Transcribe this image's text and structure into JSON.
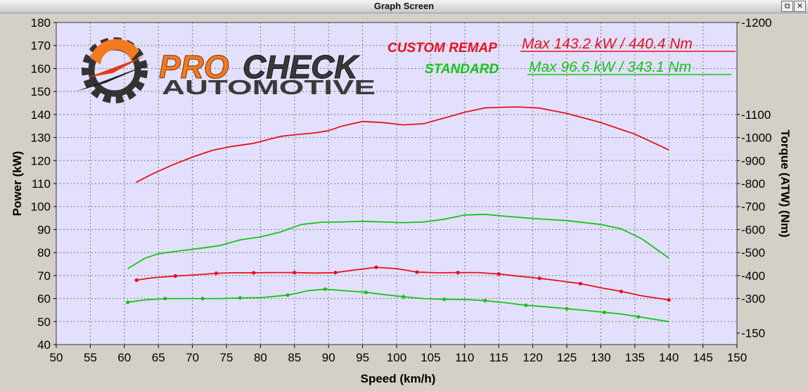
{
  "window": {
    "title": "Graph Screen",
    "restore_icon": "restore-icon",
    "close_icon": "close-icon",
    "restore_glyph": "⧉",
    "close_glyph": "✕"
  },
  "logo": {
    "word_pro": "PRO",
    "word_check": "CHECK",
    "word_automotive": "AUTOMOTIVE",
    "colors": {
      "orange": "#f47a20",
      "dark": "#2b2b2b"
    }
  },
  "legend": {
    "custom": {
      "name": "CUSTOM REMAP",
      "max": "Max 143.2 kW  / 440.4 Nm",
      "color": "#e8101e"
    },
    "standard": {
      "name": "STANDARD",
      "max": "Max 96.6 kW  / 343.1 Nm",
      "color": "#16c316"
    }
  },
  "chart_data": {
    "type": "line",
    "xlabel": "Speed (km/h)",
    "ylabel": "Power (kW)",
    "y2label": "Torque (ATW) (Nm)",
    "xlim": [
      50,
      150
    ],
    "ylim": [
      40,
      180
    ],
    "y2lim": [
      150,
      1200
    ],
    "x_ticks": [
      50,
      55,
      60,
      65,
      70,
      75,
      80,
      85,
      90,
      95,
      100,
      105,
      110,
      115,
      120,
      125,
      130,
      135,
      140,
      145,
      150
    ],
    "y_ticks": [
      40,
      50,
      60,
      70,
      80,
      90,
      100,
      110,
      120,
      130,
      140,
      150,
      160,
      170,
      180
    ],
    "y2_ticks": [
      {
        "value": 150,
        "label": "-150"
      },
      {
        "value": 300,
        "label": "-300"
      },
      {
        "value": 400,
        "label": "-400"
      },
      {
        "value": 500,
        "label": "-500"
      },
      {
        "value": 600,
        "label": "-600"
      },
      {
        "value": 700,
        "label": "-700"
      },
      {
        "value": 800,
        "label": "-800"
      },
      {
        "value": 900,
        "label": "-900"
      },
      {
        "value": 1000,
        "label": "-1000"
      },
      {
        "value": 1100,
        "label": "-1100"
      },
      {
        "value": 1200,
        "label": "-1200"
      }
    ],
    "grid": true,
    "background": "#e3e0ff",
    "series": [
      {
        "name": "CUSTOM REMAP",
        "quantity": "power",
        "color": "#e8101e",
        "markers": false,
        "x": [
          61.7,
          64,
          67,
          70,
          73,
          75.5,
          79,
          83,
          85,
          88,
          90,
          92,
          95,
          98,
          101,
          104,
          107,
          110,
          113,
          116,
          118,
          121,
          125,
          130,
          135,
          140
        ],
        "y": [
          110.5,
          114,
          118,
          121.5,
          124.5,
          126,
          127.5,
          130.5,
          131.2,
          132,
          133,
          135,
          137,
          136.5,
          135.5,
          136,
          138.5,
          141,
          142.9,
          143.2,
          143.3,
          142.8,
          140.5,
          136.5,
          131.5,
          124.6
        ]
      },
      {
        "name": "STANDARD",
        "quantity": "power",
        "color": "#16c316",
        "markers": false,
        "x": [
          60.5,
          63,
          65,
          68,
          71,
          74,
          77,
          80,
          83,
          86,
          89,
          92,
          95,
          98,
          101,
          104,
          107,
          110,
          113,
          116,
          120,
          125,
          130,
          133,
          136,
          140
        ],
        "y": [
          73,
          77.5,
          79.5,
          80.7,
          81.8,
          83,
          85.5,
          86.8,
          89,
          92.2,
          93.2,
          93.3,
          93.6,
          93.3,
          93,
          93.3,
          94.5,
          96.3,
          96.6,
          95.8,
          94.8,
          93.9,
          92.2,
          90.3,
          86,
          77.6
        ]
      },
      {
        "name": "CUSTOM REMAP",
        "quantity": "torque",
        "color": "#e8101e",
        "markers": true,
        "x": [
          61.8,
          64,
          67.5,
          71,
          73.5,
          76,
          79,
          82,
          85,
          88,
          91,
          94,
          97,
          100,
          103,
          106,
          109,
          112,
          115,
          118,
          121,
          124,
          127,
          130,
          133,
          136,
          140
        ],
        "y": [
          380,
          390,
          398,
          404,
          410,
          412,
          412,
          413,
          413,
          411,
          413,
          425,
          436,
          430,
          415,
          412,
          413,
          413,
          407,
          397,
          388,
          377,
          365,
          347,
          331,
          312,
          294
        ]
      },
      {
        "name": "STANDARD",
        "quantity": "torque",
        "color": "#16c316",
        "markers": true,
        "x": [
          60.5,
          63,
          66,
          69,
          71.5,
          74,
          77,
          80,
          84,
          87,
          89.5,
          92,
          95.5,
          98,
          101,
          104,
          107,
          110,
          113,
          116,
          119,
          122,
          125,
          128,
          130.5,
          133,
          135.5,
          140
        ],
        "y": [
          284,
          294,
          300,
          300,
          300,
          300,
          303,
          304,
          315,
          334,
          341,
          335,
          327,
          318,
          308,
          300,
          297,
          296,
          291,
          282,
          271,
          264,
          256,
          248,
          240,
          233,
          221,
          200
        ]
      }
    ]
  }
}
